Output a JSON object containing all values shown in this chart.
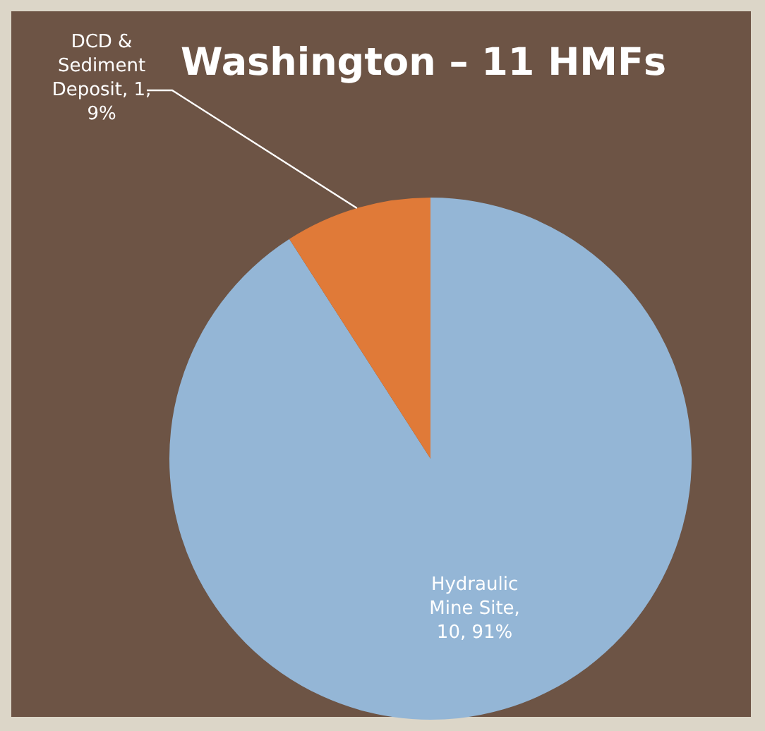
{
  "chart_data": {
    "type": "pie",
    "title": "Washington – 11 HMFs",
    "categories": [
      "Hydraulic Mine Site",
      "DCD & Sediment Deposit"
    ],
    "values": [
      10,
      1
    ],
    "colors": [
      "#94b6d6",
      "#e07a38"
    ],
    "value_labels": [
      ", 10, 91%",
      ", 1, 9%"
    ],
    "legend": false
  }
}
